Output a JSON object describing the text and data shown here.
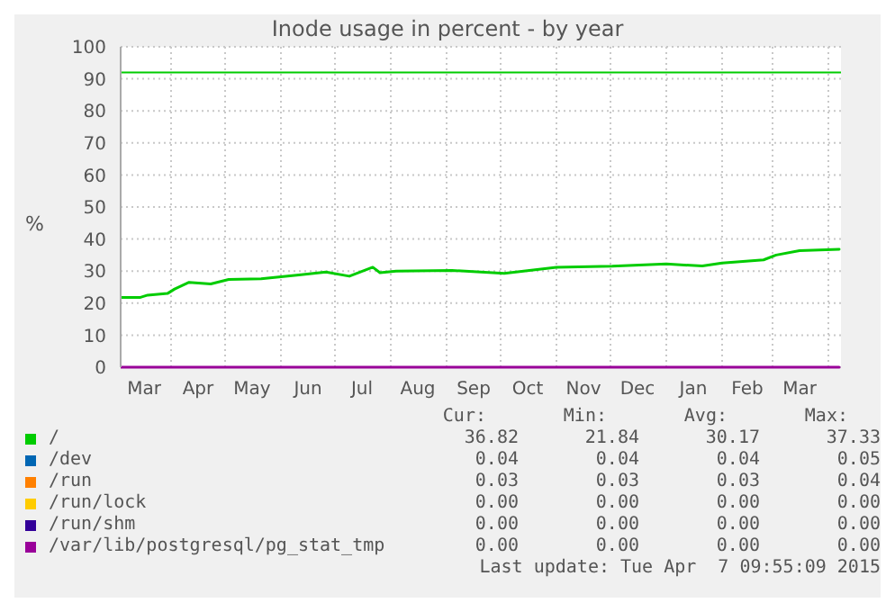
{
  "chart_data": {
    "type": "line",
    "title": "Inode usage in percent - by year",
    "ylabel": "%",
    "xlim": [
      "2014-03-04",
      "2015-04-08"
    ],
    "xticks": [
      {
        "value": "2014-03-17",
        "label": "Mar"
      },
      {
        "value": "2014-04-01",
        "label": null
      },
      {
        "value": "2014-04-16",
        "label": "Apr"
      },
      {
        "value": "2014-05-01",
        "label": null
      },
      {
        "value": "2014-05-16",
        "label": "May"
      },
      {
        "value": "2014-06-01",
        "label": null
      },
      {
        "value": "2014-06-16",
        "label": "Jun"
      },
      {
        "value": "2014-07-01",
        "label": null
      },
      {
        "value": "2014-07-16",
        "label": "Jul"
      },
      {
        "value": "2014-08-01",
        "label": null
      },
      {
        "value": "2014-08-16",
        "label": "Aug"
      },
      {
        "value": "2014-09-01",
        "label": null
      },
      {
        "value": "2014-09-16",
        "label": "Sep"
      },
      {
        "value": "2014-10-01",
        "label": null
      },
      {
        "value": "2014-10-16",
        "label": "Oct"
      },
      {
        "value": "2014-11-01",
        "label": null
      },
      {
        "value": "2014-11-16",
        "label": "Nov"
      },
      {
        "value": "2014-12-01",
        "label": null
      },
      {
        "value": "2014-12-16",
        "label": "Dec"
      },
      {
        "value": "2015-01-01",
        "label": null
      },
      {
        "value": "2015-01-16",
        "label": "Jan"
      },
      {
        "value": "2015-02-01",
        "label": null
      },
      {
        "value": "2015-02-15",
        "label": "Feb"
      },
      {
        "value": "2015-03-01",
        "label": null
      },
      {
        "value": "2015-03-16",
        "label": "Mar"
      },
      {
        "value": "2015-04-01",
        "label": null
      }
    ],
    "ylim": [
      0,
      100
    ],
    "yticks": [
      0,
      10,
      20,
      30,
      40,
      50,
      60,
      70,
      80,
      90,
      100
    ],
    "grid": true,
    "legend": "bottom",
    "marker": "none",
    "line_style": "solid",
    "series": [
      {
        "name": "/",
        "color": "#00cc00",
        "x": [
          "2014-03-04",
          "2014-03-15",
          "2014-03-19",
          "2014-03-30",
          "2014-04-03",
          "2014-04-11",
          "2014-04-23",
          "2014-05-03",
          "2014-05-21",
          "2014-06-11",
          "2014-06-26",
          "2014-07-09",
          "2014-07-22",
          "2014-07-26",
          "2014-08-04",
          "2014-09-04",
          "2014-10-03",
          "2014-11-01",
          "2014-12-02",
          "2015-01-01",
          "2015-01-21",
          "2015-02-01",
          "2015-02-24",
          "2015-03-03",
          "2015-03-16",
          "2015-04-07"
        ],
        "values": [
          21.8,
          21.8,
          22.5,
          23,
          24.4,
          26.5,
          26,
          27.4,
          27.6,
          28.8,
          29.7,
          28.4,
          31.2,
          29.5,
          30,
          30.2,
          29.3,
          31.2,
          31.5,
          32.2,
          31.6,
          32.5,
          33.5,
          35,
          36.4,
          36.8
        ]
      },
      {
        "name": "/dev",
        "color": "#0066b3"
      },
      {
        "name": "/run",
        "color": "#ff8000"
      },
      {
        "name": "/run/lock",
        "color": "#ffcc00"
      },
      {
        "name": "/run/shm",
        "color": "#330099"
      },
      {
        "name": "/var/lib/postgresql/pg_stat_tmp",
        "color": "#990099",
        "x": [
          "2014-03-04",
          "2015-04-07"
        ],
        "values": [
          0,
          0
        ]
      }
    ],
    "ref_lines": [
      {
        "axis": "y",
        "value": 92,
        "color": "#00cc00"
      }
    ],
    "annotations": [
      "Cur:",
      "Min:",
      "Avg:",
      "Max:",
      "36.82",
      "21.84",
      "30.17",
      "37.33",
      "0.04",
      "0.04",
      "0.04",
      "0.05",
      "0.03",
      "0.03",
      "0.03",
      "0.04",
      "0.00",
      "0.00",
      "0.00",
      "0.00",
      "0.00",
      "0.00",
      "0.00",
      "0.00",
      "0.00",
      "0.00",
      "0.00",
      "0.00",
      "Last update: Tue Apr  7 09:55:09 2015"
    ]
  }
}
